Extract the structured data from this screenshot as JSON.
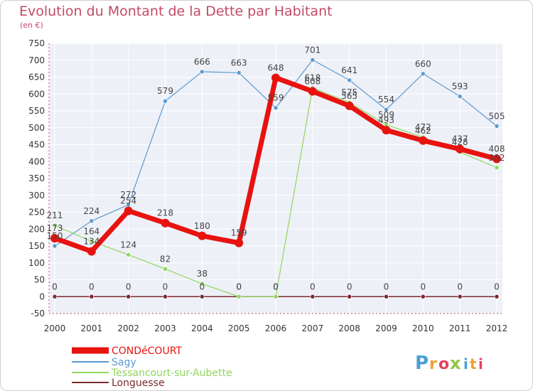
{
  "chart_data": {
    "type": "line",
    "title": "Evolution du Montant de la Dette par Habitant",
    "unit": "(en €)",
    "xlabel": "",
    "ylabel": "",
    "ylim": [
      -50,
      750
    ],
    "yticks": [
      -50,
      0,
      50,
      100,
      150,
      200,
      250,
      300,
      350,
      400,
      450,
      500,
      550,
      600,
      650,
      700,
      750
    ],
    "x": [
      "2000",
      "2001",
      "2002",
      "2003",
      "2004",
      "2005",
      "2006",
      "2007",
      "2008",
      "2009",
      "2010",
      "2011",
      "2012"
    ],
    "grid": true,
    "legend_position": "bottom-left",
    "series": [
      {
        "name": "CONDéCOURT",
        "color": "#e8120f",
        "values": [
          173,
          134,
          254,
          218,
          180,
          159,
          648,
          608,
          565,
          493,
          462,
          437,
          408
        ]
      },
      {
        "name": "Sagy",
        "color": "#5a9ad0",
        "values": [
          150,
          224,
          272,
          579,
          666,
          663,
          559,
          701,
          641,
          554,
          660,
          593,
          505
        ]
      },
      {
        "name": "Tessancourt-sur-Aubette",
        "color": "#8fd65a",
        "values": [
          211,
          164,
          124,
          82,
          38,
          0,
          0,
          618,
          575,
          509,
          472,
          428,
          382
        ]
      },
      {
        "name": "Longuesse",
        "color": "#7a2a2a",
        "values": [
          0,
          0,
          0,
          0,
          0,
          0,
          0,
          0,
          0,
          0,
          0,
          0,
          0
        ]
      }
    ]
  },
  "logo": {
    "letters": [
      "P",
      "r",
      "o",
      "x",
      "i",
      "t",
      "i"
    ],
    "colors": [
      "#4a9fd8",
      "#f0a030",
      "#e84060",
      "#8fc640",
      "#4a9fd8",
      "#f0a030",
      "#e84060"
    ]
  }
}
